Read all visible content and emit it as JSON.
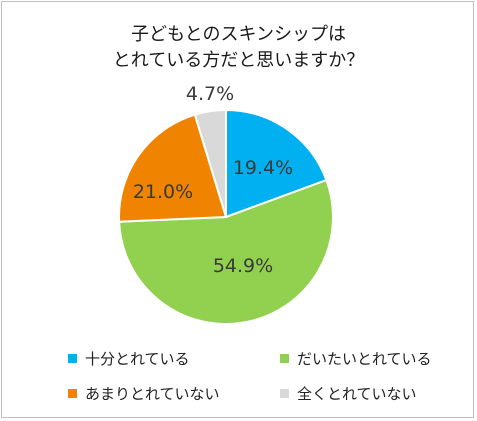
{
  "chart_data": {
    "type": "pie",
    "title_lines": [
      "子どもとのスキンシップは",
      "とれている方だと思いますか？"
    ],
    "slices": [
      {
        "label": "十分とれている",
        "value": 19.4,
        "display": "19.4%",
        "color": "#00B0F0"
      },
      {
        "label": "だいたいとれている",
        "value": 54.9,
        "display": "54.9%",
        "color": "#92D050"
      },
      {
        "label": "あまりとれていない",
        "value": 21.0,
        "display": "21.0%",
        "color": "#F08400"
      },
      {
        "label": "全くとれていない",
        "value": 4.7,
        "display": "4.7%",
        "color": "#D9D9D9"
      }
    ],
    "legend_placement": "bottom",
    "start_angle": "12 o'clock",
    "direction": "clockwise"
  }
}
